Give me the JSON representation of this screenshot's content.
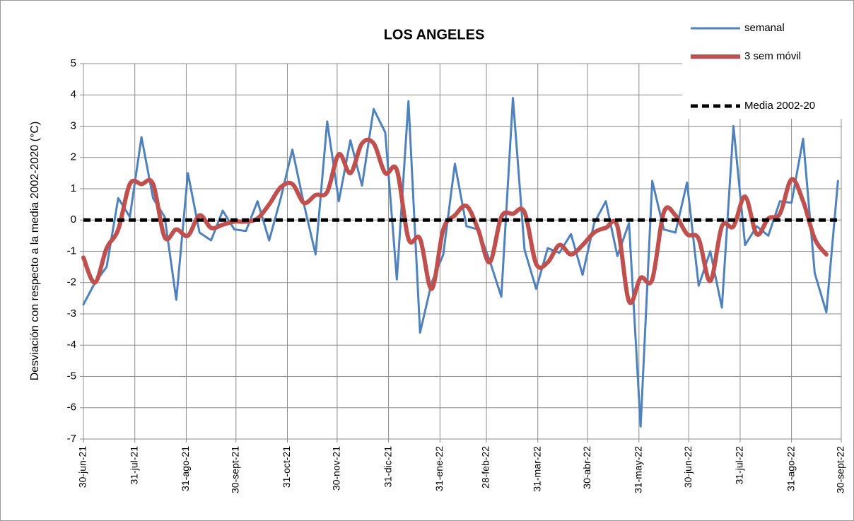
{
  "chart_data": {
    "type": "line",
    "title": "LOS ANGELES",
    "y_label": "Desviación con respecto a la media  2002-2020 (°C)",
    "x": [
      "2021-06-30",
      "2021-07-07",
      "2021-07-14",
      "2021-07-21",
      "2021-07-28",
      "2021-08-04",
      "2021-08-11",
      "2021-08-18",
      "2021-08-25",
      "2021-09-01",
      "2021-09-08",
      "2021-09-15",
      "2021-09-22",
      "2021-09-29",
      "2021-10-06",
      "2021-10-13",
      "2021-10-20",
      "2021-10-27",
      "2021-11-03",
      "2021-11-10",
      "2021-11-17",
      "2021-11-24",
      "2021-12-01",
      "2021-12-08",
      "2021-12-15",
      "2021-12-22",
      "2021-12-29",
      "2022-01-05",
      "2022-01-12",
      "2022-01-19",
      "2022-01-26",
      "2022-02-02",
      "2022-02-09",
      "2022-02-16",
      "2022-02-23",
      "2022-03-02",
      "2022-03-09",
      "2022-03-16",
      "2022-03-23",
      "2022-03-30",
      "2022-04-06",
      "2022-04-13",
      "2022-04-20",
      "2022-04-27",
      "2022-05-04",
      "2022-05-11",
      "2022-05-18",
      "2022-05-25",
      "2022-06-01",
      "2022-06-08",
      "2022-06-15",
      "2022-06-22",
      "2022-06-29",
      "2022-07-06",
      "2022-07-13",
      "2022-07-20",
      "2022-07-27",
      "2022-08-03",
      "2022-08-10",
      "2022-08-17",
      "2022-08-24",
      "2022-08-31",
      "2022-09-07",
      "2022-09-14",
      "2022-09-21",
      "2022-09-28"
    ],
    "series": [
      {
        "name": "semanal",
        "color": "#4f81bd",
        "width": 3,
        "values": [
          -2.7,
          -2.0,
          -1.5,
          0.7,
          0.1,
          2.65,
          0.7,
          0.1,
          -2.55,
          1.5,
          -0.4,
          -0.65,
          0.3,
          -0.3,
          -0.35,
          0.6,
          -0.65,
          0.7,
          2.25,
          0.5,
          -1.1,
          3.15,
          0.6,
          2.55,
          1.1,
          3.55,
          2.8,
          -1.9,
          3.8,
          -3.6,
          -2.0,
          -1.1,
          1.8,
          -0.2,
          -0.3,
          -1.3,
          -2.45,
          3.9,
          -0.95,
          -2.2,
          -0.9,
          -1.05,
          -0.45,
          -1.75,
          -0.1,
          0.6,
          -1.15,
          -0.1,
          -6.6,
          1.25,
          -0.3,
          -0.4,
          1.2,
          -2.1,
          -1.0,
          -2.8,
          3.0,
          -0.8,
          -0.2,
          -0.5,
          0.6,
          0.55,
          2.6,
          -1.7,
          -2.95,
          1.25
        ]
      },
      {
        "name": "3 sem móvil",
        "color": "#c0504d",
        "width": 6,
        "smooth": true,
        "values": [
          -1.2,
          -2.0,
          -0.9,
          -0.3,
          1.15,
          1.15,
          1.15,
          -0.55,
          -0.3,
          -0.5,
          0.15,
          -0.25,
          -0.15,
          -0.05,
          -0.05,
          0.05,
          0.5,
          1.05,
          1.15,
          0.55,
          0.8,
          0.9,
          2.1,
          1.5,
          2.45,
          2.45,
          1.5,
          1.6,
          -0.6,
          -0.6,
          -2.2,
          -0.3,
          0.15,
          0.45,
          -0.3,
          -1.35,
          0.1,
          0.2,
          0.25,
          -1.4,
          -1.35,
          -0.8,
          -1.1,
          -0.8,
          -0.4,
          -0.25,
          -0.2,
          -2.6,
          -1.85,
          -1.9,
          0.25,
          0.15,
          -0.45,
          -0.6,
          -1.95,
          -0.2,
          -0.2,
          0.75,
          -0.45,
          0.05,
          0.2,
          1.3,
          0.6,
          -0.6,
          -1.1,
          null
        ]
      },
      {
        "name": "Media 2002-20",
        "color": "#000000",
        "width": 5,
        "dashed": true,
        "values": [
          0,
          0,
          0,
          0,
          0,
          0,
          0,
          0,
          0,
          0,
          0,
          0,
          0,
          0,
          0,
          0,
          0,
          0,
          0,
          0,
          0,
          0,
          0,
          0,
          0,
          0,
          0,
          0,
          0,
          0,
          0,
          0,
          0,
          0,
          0,
          0,
          0,
          0,
          0,
          0,
          0,
          0,
          0,
          0,
          0,
          0,
          0,
          0,
          0,
          0,
          0,
          0,
          0,
          0,
          0,
          0,
          0,
          0,
          0,
          0,
          0,
          0,
          0,
          0,
          0,
          0
        ]
      }
    ],
    "xlim": [
      "2021-06-30",
      "2022-09-30"
    ],
    "xticks": [
      {
        "value": "2021-06-30",
        "label": "30-jun-21"
      },
      {
        "value": "2021-07-31",
        "label": "31-jul-21"
      },
      {
        "value": "2021-08-31",
        "label": "31-ago-21"
      },
      {
        "value": "2021-09-30",
        "label": "30-sept-21"
      },
      {
        "value": "2021-10-31",
        "label": "31-oct-21"
      },
      {
        "value": "2021-11-30",
        "label": "30-nov-21"
      },
      {
        "value": "2021-12-31",
        "label": "31-dic-21"
      },
      {
        "value": "2022-01-31",
        "label": "31-ene-22"
      },
      {
        "value": "2022-02-28",
        "label": "28-feb-22"
      },
      {
        "value": "2022-03-31",
        "label": "31-mar-22"
      },
      {
        "value": "2022-04-30",
        "label": "30-abr-22"
      },
      {
        "value": "2022-05-31",
        "label": "31-may-22"
      },
      {
        "value": "2022-06-30",
        "label": "30-jun-22"
      },
      {
        "value": "2022-07-31",
        "label": "31-jul-22"
      },
      {
        "value": "2022-08-31",
        "label": "31-ago-22"
      },
      {
        "value": "2022-09-30",
        "label": "30-sept-22"
      }
    ],
    "ylim": [
      -7,
      5
    ],
    "yticks": [
      -7,
      -6,
      -5,
      -4,
      -3,
      -2,
      -1,
      0,
      1,
      2,
      3,
      4,
      5
    ],
    "grid": true,
    "legend": "top-right"
  }
}
